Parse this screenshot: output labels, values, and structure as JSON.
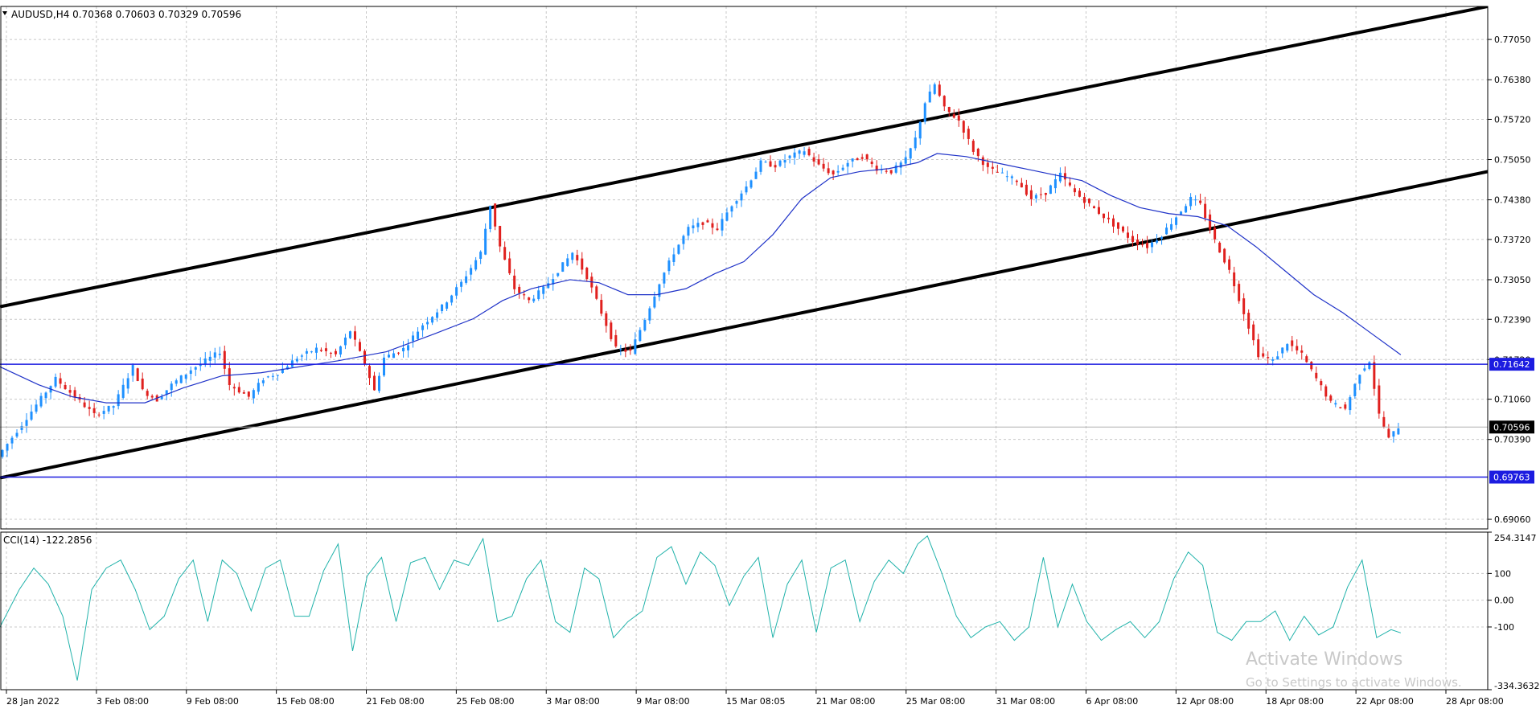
{
  "symbol_header": "AUDUSD,H4  0.70368 0.70603 0.70329 0.70596",
  "cci_header": "CCI(14) -122.2856",
  "watermark": {
    "title": "Activate Windows",
    "subtitle": "Go to Settings to activate Windows."
  },
  "colors": {
    "bull": "#1e90ff",
    "bear": "#e0201e",
    "ma": "#1f32c8",
    "hline": "#1c1ce0",
    "channel": "#000000",
    "cci": "#20b2aa",
    "grid": "#c8c8c8"
  },
  "chart_data": [
    {
      "type": "candlestick",
      "symbol": "AUDUSD",
      "timeframe": "H4",
      "ylim": [
        0.689,
        0.776
      ],
      "y_ticks": [
        "0.77050",
        "0.76380",
        "0.75720",
        "0.75050",
        "0.74380",
        "0.73720",
        "0.73050",
        "0.72390",
        "0.71720",
        "0.71060",
        "0.70390",
        "0.69060"
      ],
      "x_ticks": [
        "28 Jan 2022",
        "3 Feb 08:00",
        "9 Feb 08:00",
        "15 Feb 08:00",
        "21 Feb 08:00",
        "25 Feb 08:00",
        "3 Mar 08:00",
        "9 Mar 08:00",
        "15 Mar 08:05",
        "21 Mar 08:00",
        "25 Mar 08:00",
        "31 Mar 08:00",
        "6 Apr 08:00",
        "12 Apr 08:00",
        "18 Apr 08:00",
        "22 Apr 08:00",
        "28 Apr 08:00"
      ],
      "last": {
        "open": 0.70368,
        "high": 0.70603,
        "low": 0.70329,
        "close": 0.70596
      },
      "price_path": [
        [
          0,
          0.701
        ],
        [
          6,
          0.7075
        ],
        [
          12,
          0.714
        ],
        [
          16,
          0.711
        ],
        [
          20,
          0.708
        ],
        [
          24,
          0.7095
        ],
        [
          28,
          0.716
        ],
        [
          30,
          0.712
        ],
        [
          33,
          0.7105
        ],
        [
          36,
          0.713
        ],
        [
          40,
          0.7155
        ],
        [
          46,
          0.7185
        ],
        [
          48,
          0.713
        ],
        [
          52,
          0.711
        ],
        [
          55,
          0.714
        ],
        [
          58,
          0.715
        ],
        [
          62,
          0.7175
        ],
        [
          66,
          0.719
        ],
        [
          70,
          0.718
        ],
        [
          73,
          0.722
        ],
        [
          76,
          0.7165
        ],
        [
          78,
          0.712
        ],
        [
          80,
          0.7175
        ],
        [
          84,
          0.719
        ],
        [
          88,
          0.723
        ],
        [
          92,
          0.726
        ],
        [
          96,
          0.73
        ],
        [
          100,
          0.735
        ],
        [
          102,
          0.743
        ],
        [
          104,
          0.736
        ],
        [
          107,
          0.729
        ],
        [
          110,
          0.727
        ],
        [
          113,
          0.729
        ],
        [
          116,
          0.732
        ],
        [
          119,
          0.735
        ],
        [
          122,
          0.731
        ],
        [
          125,
          0.725
        ],
        [
          128,
          0.719
        ],
        [
          131,
          0.7185
        ],
        [
          134,
          0.724
        ],
        [
          137,
          0.73
        ],
        [
          140,
          0.735
        ],
        [
          143,
          0.739
        ],
        [
          146,
          0.74
        ],
        [
          149,
          0.739
        ],
        [
          152,
          0.743
        ],
        [
          155,
          0.746
        ],
        [
          158,
          0.75
        ],
        [
          161,
          0.7495
        ],
        [
          164,
          0.751
        ],
        [
          167,
          0.752
        ],
        [
          170,
          0.7495
        ],
        [
          173,
          0.748
        ],
        [
          176,
          0.75
        ],
        [
          179,
          0.751
        ],
        [
          182,
          0.749
        ],
        [
          185,
          0.7485
        ],
        [
          188,
          0.7505
        ],
        [
          190,
          0.754
        ],
        [
          192,
          0.76
        ],
        [
          194,
          0.763
        ],
        [
          196,
          0.759
        ],
        [
          199,
          0.757
        ],
        [
          202,
          0.752
        ],
        [
          205,
          0.749
        ],
        [
          208,
          0.748
        ],
        [
          211,
          0.747
        ],
        [
          214,
          0.744
        ],
        [
          217,
          0.745
        ],
        [
          220,
          0.748
        ],
        [
          223,
          0.745
        ],
        [
          226,
          0.743
        ],
        [
          229,
          0.741
        ],
        [
          232,
          0.739
        ],
        [
          235,
          0.737
        ],
        [
          238,
          0.736
        ],
        [
          241,
          0.738
        ],
        [
          244,
          0.741
        ],
        [
          247,
          0.744
        ],
        [
          249,
          0.743
        ],
        [
          252,
          0.737
        ],
        [
          255,
          0.732
        ],
        [
          258,
          0.725
        ],
        [
          261,
          0.718
        ],
        [
          264,
          0.717
        ],
        [
          267,
          0.72
        ],
        [
          270,
          0.718
        ],
        [
          273,
          0.714
        ],
        [
          276,
          0.71
        ],
        [
          279,
          0.709
        ],
        [
          282,
          0.715
        ],
        [
          284,
          0.717
        ],
        [
          286,
          0.708
        ],
        [
          288,
          0.704
        ],
        [
          290,
          0.706
        ]
      ],
      "moving_average_path": [
        [
          0,
          0.716
        ],
        [
          8,
          0.713
        ],
        [
          15,
          0.711
        ],
        [
          22,
          0.71
        ],
        [
          30,
          0.71
        ],
        [
          38,
          0.7125
        ],
        [
          46,
          0.7145
        ],
        [
          54,
          0.715
        ],
        [
          62,
          0.716
        ],
        [
          70,
          0.717
        ],
        [
          80,
          0.7185
        ],
        [
          90,
          0.7215
        ],
        [
          98,
          0.724
        ],
        [
          104,
          0.727
        ],
        [
          110,
          0.729
        ],
        [
          118,
          0.7305
        ],
        [
          124,
          0.73
        ],
        [
          130,
          0.728
        ],
        [
          136,
          0.728
        ],
        [
          142,
          0.729
        ],
        [
          148,
          0.7315
        ],
        [
          154,
          0.7335
        ],
        [
          160,
          0.738
        ],
        [
          166,
          0.744
        ],
        [
          172,
          0.7475
        ],
        [
          178,
          0.7485
        ],
        [
          184,
          0.749
        ],
        [
          190,
          0.75
        ],
        [
          194,
          0.7515
        ],
        [
          200,
          0.751
        ],
        [
          206,
          0.75
        ],
        [
          212,
          0.749
        ],
        [
          218,
          0.748
        ],
        [
          224,
          0.747
        ],
        [
          230,
          0.7445
        ],
        [
          236,
          0.7425
        ],
        [
          242,
          0.7415
        ],
        [
          248,
          0.741
        ],
        [
          254,
          0.7395
        ],
        [
          260,
          0.736
        ],
        [
          266,
          0.732
        ],
        [
          272,
          0.728
        ],
        [
          278,
          0.725
        ],
        [
          284,
          0.7215
        ],
        [
          290,
          0.718
        ]
      ],
      "horizontal_levels": [
        {
          "label": "0.71642",
          "value": 0.71642
        },
        {
          "label": "0.69763",
          "value": 0.69763
        }
      ],
      "current_price": {
        "label": "0.70596",
        "value": 0.70596
      },
      "channel_lines": [
        {
          "from": [
            0,
            0.726
          ],
          "to": [
            308,
            0.776
          ]
        },
        {
          "from": [
            0,
            0.6975
          ],
          "to": [
            308,
            0.7485
          ]
        }
      ],
      "x_range": [
        0,
        308
      ]
    },
    {
      "type": "line",
      "name": "CCI(14)",
      "ylim": [
        -334.3632,
        254.3147
      ],
      "y_ticks": [
        "254.3147",
        "100",
        "0.00",
        "-100",
        "-334.3632"
      ],
      "path": [
        [
          0,
          -100
        ],
        [
          4,
          40
        ],
        [
          7,
          120
        ],
        [
          10,
          60
        ],
        [
          13,
          -60
        ],
        [
          16,
          -300
        ],
        [
          19,
          40
        ],
        [
          22,
          120
        ],
        [
          25,
          150
        ],
        [
          28,
          40
        ],
        [
          31,
          -110
        ],
        [
          34,
          -60
        ],
        [
          37,
          80
        ],
        [
          40,
          150
        ],
        [
          43,
          -80
        ],
        [
          46,
          150
        ],
        [
          49,
          100
        ],
        [
          52,
          -40
        ],
        [
          55,
          120
        ],
        [
          58,
          150
        ],
        [
          61,
          -60
        ],
        [
          64,
          -60
        ],
        [
          67,
          110
        ],
        [
          70,
          210
        ],
        [
          73,
          -190
        ],
        [
          76,
          90
        ],
        [
          79,
          160
        ],
        [
          82,
          -80
        ],
        [
          85,
          140
        ],
        [
          88,
          160
        ],
        [
          91,
          40
        ],
        [
          94,
          150
        ],
        [
          97,
          130
        ],
        [
          100,
          230
        ],
        [
          103,
          -80
        ],
        [
          106,
          -60
        ],
        [
          109,
          80
        ],
        [
          112,
          150
        ],
        [
          115,
          -80
        ],
        [
          118,
          -120
        ],
        [
          121,
          120
        ],
        [
          124,
          80
        ],
        [
          127,
          -140
        ],
        [
          130,
          -80
        ],
        [
          133,
          -40
        ],
        [
          136,
          160
        ],
        [
          139,
          200
        ],
        [
          142,
          60
        ],
        [
          145,
          180
        ],
        [
          148,
          130
        ],
        [
          151,
          -20
        ],
        [
          154,
          90
        ],
        [
          157,
          160
        ],
        [
          160,
          -140
        ],
        [
          163,
          60
        ],
        [
          166,
          150
        ],
        [
          169,
          -120
        ],
        [
          172,
          120
        ],
        [
          175,
          150
        ],
        [
          178,
          -80
        ],
        [
          181,
          70
        ],
        [
          184,
          150
        ],
        [
          187,
          100
        ],
        [
          190,
          210
        ],
        [
          192,
          240
        ],
        [
          195,
          100
        ],
        [
          198,
          -60
        ],
        [
          201,
          -140
        ],
        [
          204,
          -100
        ],
        [
          207,
          -80
        ],
        [
          210,
          -150
        ],
        [
          213,
          -100
        ],
        [
          216,
          160
        ],
        [
          219,
          -100
        ],
        [
          222,
          60
        ],
        [
          225,
          -80
        ],
        [
          228,
          -150
        ],
        [
          231,
          -110
        ],
        [
          234,
          -80
        ],
        [
          237,
          -140
        ],
        [
          240,
          -80
        ],
        [
          243,
          80
        ],
        [
          246,
          180
        ],
        [
          249,
          130
        ],
        [
          252,
          -120
        ],
        [
          255,
          -150
        ],
        [
          258,
          -80
        ],
        [
          261,
          -80
        ],
        [
          264,
          -40
        ],
        [
          267,
          -150
        ],
        [
          270,
          -60
        ],
        [
          273,
          -130
        ],
        [
          276,
          -100
        ],
        [
          279,
          50
        ],
        [
          282,
          150
        ],
        [
          285,
          -140
        ],
        [
          288,
          -110
        ],
        [
          290,
          -122
        ]
      ]
    }
  ]
}
